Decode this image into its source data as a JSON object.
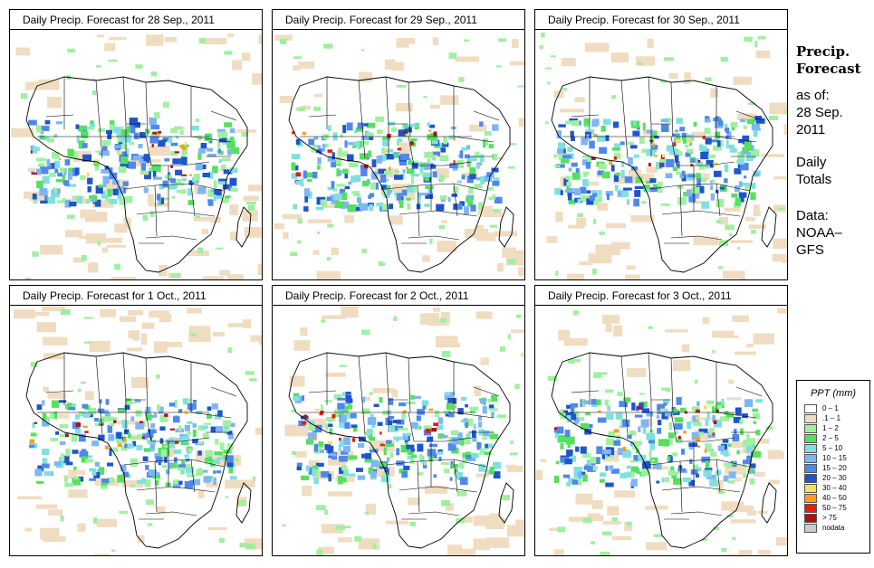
{
  "panels": [
    {
      "title": "Daily Precip. Forecast for  28 Sep., 2011"
    },
    {
      "title": "Daily Precip. Forecast for  29 Sep., 2011"
    },
    {
      "title": "Daily Precip. Forecast for  30 Sep., 2011"
    },
    {
      "title": "Daily Precip. Forecast for  1 Oct., 2011"
    },
    {
      "title": "Daily Precip. Forecast for  2 Oct., 2011"
    },
    {
      "title": "Daily Precip. Forecast for  3 Oct., 2011"
    }
  ],
  "side": {
    "heading_line1": "Precip.",
    "heading_line2": "Forecast",
    "asof_line1": "as of:",
    "asof_line2": "28 Sep.",
    "asof_line3": "2011",
    "totals_line1": "Daily",
    "totals_line2": "Totals",
    "data_line1": "Data:",
    "data_line2": "NOAA–",
    "data_line3": "GFS"
  },
  "legend": {
    "title": "PPT (mm)",
    "items": [
      {
        "label": "0 – 1",
        "color": "#ffffff"
      },
      {
        "label": ".1 – 1",
        "color": "#f0dcc0"
      },
      {
        "label": "1 – 2",
        "color": "#9ff0a0"
      },
      {
        "label": "2 – 5",
        "color": "#55e060"
      },
      {
        "label": "5 – 10",
        "color": "#80e0e0"
      },
      {
        "label": "10 – 15",
        "color": "#7fb5f5"
      },
      {
        "label": "15 – 20",
        "color": "#4f88ea"
      },
      {
        "label": "20 – 30",
        "color": "#1f55cc"
      },
      {
        "label": "30 – 40",
        "color": "#f5e060"
      },
      {
        "label": "40 – 50",
        "color": "#f5a020"
      },
      {
        "label": "50 – 75",
        "color": "#e02010"
      },
      {
        "label": "> 75",
        "color": "#b01010"
      },
      {
        "label": "nodata",
        "color": "#cccccc"
      }
    ]
  }
}
